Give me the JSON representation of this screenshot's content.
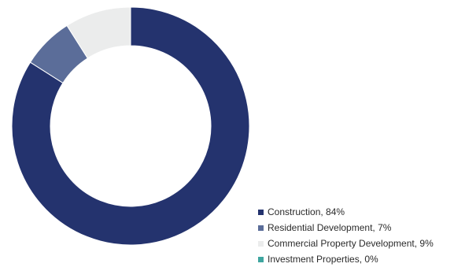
{
  "chart_data": {
    "type": "pie",
    "style": "donut",
    "slices": [
      {
        "label": "Construction, 84%",
        "name": "Construction",
        "value": 84,
        "color": "#24336e"
      },
      {
        "label": "Residential Development, 7%",
        "name": "Residential Development",
        "value": 7,
        "color": "#5b6d99"
      },
      {
        "label": "Commercial Property Development, 9%",
        "name": "Commercial Property Development",
        "value": 9,
        "color": "#ebecec"
      },
      {
        "label": "Investment Properties, 0%",
        "name": "Investment Properties",
        "value": 0,
        "color": "#3fa6a0"
      }
    ],
    "legend_position": "bottom-right"
  }
}
